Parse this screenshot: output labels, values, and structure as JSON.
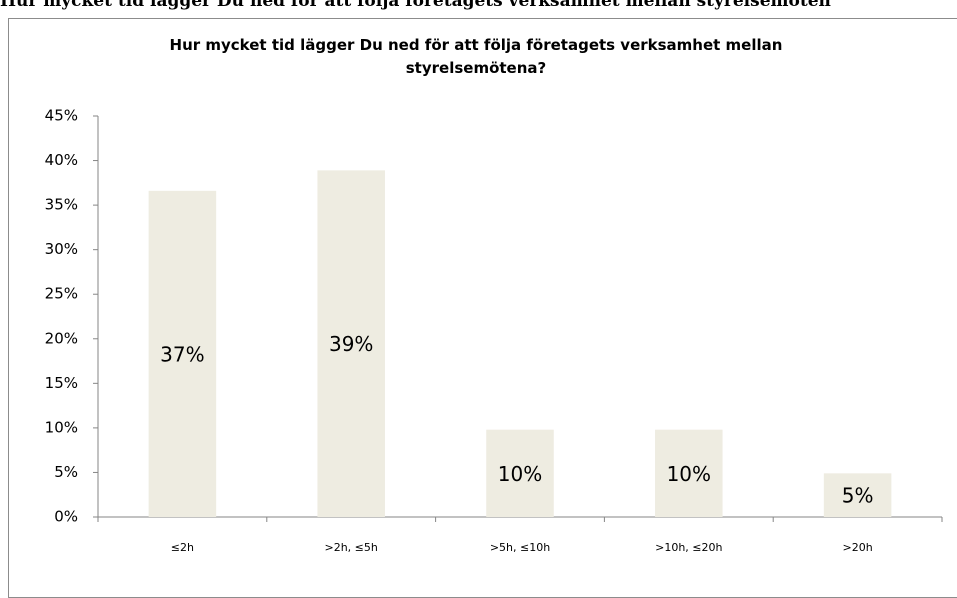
{
  "heading": "Hur mycket tid lägger Du ned för att följa företagets verksamhet mellan styrelsemöten",
  "chart_data": {
    "type": "bar",
    "title": "Hur mycket tid lägger Du ned för att följa företagets verksamhet mellan styrelsemötena?",
    "categories": [
      "≤2h",
      ">2h, ≤5h",
      ">5h, ≤10h",
      ">10h, ≤20h",
      ">20h"
    ],
    "values": [
      36.6,
      38.9,
      9.8,
      9.8,
      4.9
    ],
    "value_labels": [
      "37%",
      "39%",
      "10%",
      "10%",
      "5%"
    ],
    "color": "#eeece1",
    "ylim": [
      0,
      45
    ],
    "yticks": [
      {
        "value": 0,
        "label": "0%"
      },
      {
        "value": 5,
        "label": "5%"
      },
      {
        "value": 10,
        "label": "10%"
      },
      {
        "value": 15,
        "label": "15%"
      },
      {
        "value": 20,
        "label": "20%"
      },
      {
        "value": 25,
        "label": "25%"
      },
      {
        "value": 30,
        "label": "30%"
      },
      {
        "value": 35,
        "label": "35%"
      },
      {
        "value": 40,
        "label": "40%"
      },
      {
        "value": 45,
        "label": "45%"
      }
    ],
    "grid": false
  }
}
